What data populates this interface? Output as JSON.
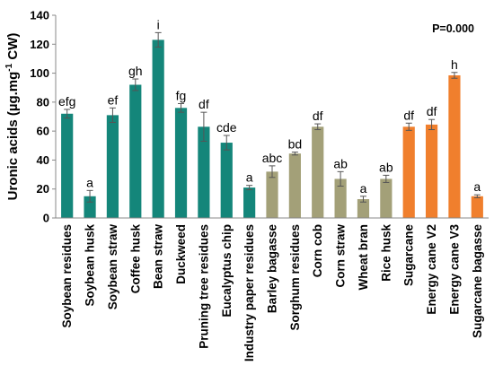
{
  "chart_data": {
    "type": "bar",
    "ylabel_main": "Uronic acids (µg.mg",
    "ylabel_sup": "-1",
    "ylabel_tail": " CW)",
    "annotation": "P=0.000",
    "ylim": [
      0,
      140
    ],
    "yticks": [
      0,
      20,
      40,
      60,
      80,
      100,
      120,
      140
    ],
    "colors": {
      "group1": "#14867a",
      "group2": "#a3a078",
      "group3": "#f07f2d",
      "errorbar": "#555555"
    },
    "bars": [
      {
        "category": "Soybean residues",
        "value": 72,
        "error": 3,
        "letter": "efg",
        "group": "group1"
      },
      {
        "category": "Soybean husk",
        "value": 15,
        "error": 4,
        "letter": "a",
        "group": "group1"
      },
      {
        "category": "Soybean straw",
        "value": 71,
        "error": 5,
        "letter": "ef",
        "group": "group1"
      },
      {
        "category": "Coffee husk",
        "value": 92,
        "error": 4,
        "letter": "gh",
        "group": "group1"
      },
      {
        "category": "Bean straw",
        "value": 123,
        "error": 5,
        "letter": "i",
        "group": "group1"
      },
      {
        "category": "Duckweed",
        "value": 76,
        "error": 3,
        "letter": "fg",
        "group": "group1"
      },
      {
        "category": "Pruning tree residues",
        "value": 63,
        "error": 10,
        "letter": "df",
        "group": "group1"
      },
      {
        "category": "Eucalyptus chip",
        "value": 52,
        "error": 5,
        "letter": "cde",
        "group": "group1"
      },
      {
        "category": "Industry paper residues",
        "value": 21,
        "error": 1.5,
        "letter": "a",
        "group": "group1"
      },
      {
        "category": "Barley bagasse",
        "value": 32,
        "error": 4,
        "letter": "abc",
        "group": "group2"
      },
      {
        "category": "Sorghum residues",
        "value": 44.5,
        "error": 1,
        "letter": "bd",
        "group": "group2"
      },
      {
        "category": "Corn cob",
        "value": 63,
        "error": 2,
        "letter": "df",
        "group": "group2"
      },
      {
        "category": "Corn straw",
        "value": 27,
        "error": 5,
        "letter": "ab",
        "group": "group2"
      },
      {
        "category": "Wheat bran",
        "value": 13,
        "error": 2,
        "letter": "a",
        "group": "group2"
      },
      {
        "category": "Rice husk",
        "value": 27,
        "error": 2.5,
        "letter": "ab",
        "group": "group2"
      },
      {
        "category": "Sugarcane",
        "value": 63,
        "error": 2.5,
        "letter": "df",
        "group": "group3"
      },
      {
        "category": "Energy cane V2",
        "value": 64.5,
        "error": 3.5,
        "letter": "df",
        "group": "group3"
      },
      {
        "category": "Energy cane V3",
        "value": 98.5,
        "error": 2,
        "letter": "h",
        "group": "group3"
      },
      {
        "category": "Sugarcane bagasse",
        "value": 15,
        "error": 1,
        "letter": "a",
        "group": "group3"
      }
    ]
  }
}
